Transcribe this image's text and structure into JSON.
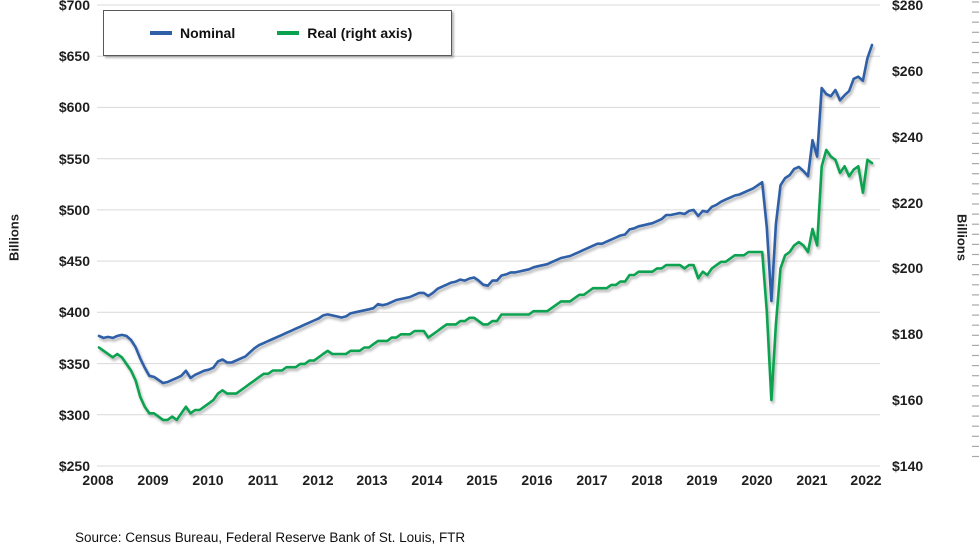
{
  "chart_data": {
    "type": "line",
    "title": "",
    "x_frequency": "monthly",
    "x_start": "2008-01",
    "x_end": "2022-02",
    "x_tick_labels": [
      "2008",
      "2009",
      "2010",
      "2011",
      "2012",
      "2013",
      "2014",
      "2015",
      "2016",
      "2017",
      "2018",
      "2019",
      "2020",
      "2021",
      "2022"
    ],
    "grid": "horizontal",
    "legend_position": "top-left-inside",
    "left_axis": {
      "label": "Billions",
      "min": 250,
      "max": 700,
      "tick_values": [
        700,
        650,
        600,
        550,
        500,
        450,
        400,
        350,
        300,
        250
      ],
      "tick_labels": [
        "$700",
        "$650",
        "$600",
        "$550",
        "$500",
        "$450",
        "$400",
        "$350",
        "$300",
        "$250"
      ]
    },
    "right_axis": {
      "label": "Billions",
      "min": 140,
      "max": 280,
      "tick_values": [
        280,
        260,
        240,
        220,
        200,
        180,
        160,
        140
      ],
      "tick_labels": [
        "$280",
        "$260",
        "$240",
        "$220",
        "$200",
        "$180",
        "$160",
        "$140"
      ]
    },
    "series": [
      {
        "name": "Nominal",
        "axis": "left",
        "color": "#2f5fa7",
        "values": [
          377,
          375,
          376,
          375,
          377,
          378,
          377,
          373,
          366,
          355,
          346,
          338,
          337,
          334,
          331,
          332,
          334,
          336,
          338,
          343,
          336,
          339,
          341,
          343,
          344,
          346,
          352,
          354,
          351,
          351,
          353,
          355,
          357,
          361,
          365,
          368,
          370,
          372,
          374,
          376,
          378,
          380,
          382,
          384,
          386,
          388,
          390,
          392,
          394,
          397,
          398,
          397,
          396,
          395,
          396,
          399,
          400,
          401,
          402,
          403,
          404,
          408,
          407,
          408,
          410,
          412,
          413,
          414,
          415,
          417,
          419,
          419,
          416,
          419,
          423,
          425,
          427,
          429,
          430,
          432,
          431,
          433,
          434,
          431,
          427,
          426,
          431,
          431,
          436,
          437,
          439,
          439,
          440,
          441,
          442,
          444,
          445,
          446,
          447,
          449,
          451,
          453,
          454,
          455,
          457,
          459,
          461,
          463,
          465,
          467,
          467,
          469,
          471,
          473,
          475,
          476,
          481,
          482,
          484,
          485,
          486,
          487,
          489,
          491,
          495,
          495,
          496,
          497,
          496,
          499,
          500,
          494,
          499,
          498,
          503,
          505,
          508,
          510,
          512,
          514,
          515,
          517,
          519,
          521,
          524,
          527,
          483,
          411,
          486,
          524,
          531,
          534,
          540,
          542,
          538,
          533,
          568,
          552,
          619,
          613,
          611,
          617,
          607,
          612,
          616,
          628,
          630,
          626,
          648,
          661
        ]
      },
      {
        "name": "Real (right axis)",
        "axis": "right",
        "color": "#0ba24f",
        "values": [
          176,
          175,
          174,
          173,
          174,
          173,
          171,
          169,
          166,
          161,
          158,
          156,
          156,
          155,
          154,
          154,
          155,
          154,
          156,
          158,
          156,
          157,
          157,
          158,
          159,
          160,
          162,
          163,
          162,
          162,
          162,
          163,
          164,
          165,
          166,
          167,
          168,
          168,
          169,
          169,
          169,
          170,
          170,
          170,
          171,
          171,
          172,
          172,
          173,
          174,
          175,
          174,
          174,
          174,
          174,
          175,
          175,
          175,
          176,
          176,
          177,
          178,
          178,
          178,
          179,
          179,
          180,
          180,
          180,
          181,
          181,
          181,
          179,
          180,
          181,
          182,
          183,
          183,
          183,
          184,
          184,
          185,
          185,
          184,
          183,
          183,
          184,
          184,
          186,
          186,
          186,
          186,
          186,
          186,
          186,
          187,
          187,
          187,
          187,
          188,
          189,
          190,
          190,
          190,
          191,
          192,
          192,
          193,
          194,
          194,
          194,
          194,
          195,
          195,
          196,
          196,
          198,
          198,
          199,
          199,
          199,
          199,
          200,
          200,
          201,
          201,
          201,
          201,
          200,
          201,
          201,
          197,
          199,
          198,
          200,
          201,
          202,
          202,
          203,
          204,
          204,
          204,
          205,
          205,
          205,
          205,
          187,
          160,
          183,
          200,
          204,
          205,
          207,
          208,
          207,
          205,
          212,
          207,
          231,
          236,
          234,
          233,
          229,
          231,
          228,
          230,
          231,
          223,
          233,
          232
        ]
      }
    ],
    "source_note": "Source: Census Bureau, Federal Reserve Bank of St. Louis, FTR"
  }
}
